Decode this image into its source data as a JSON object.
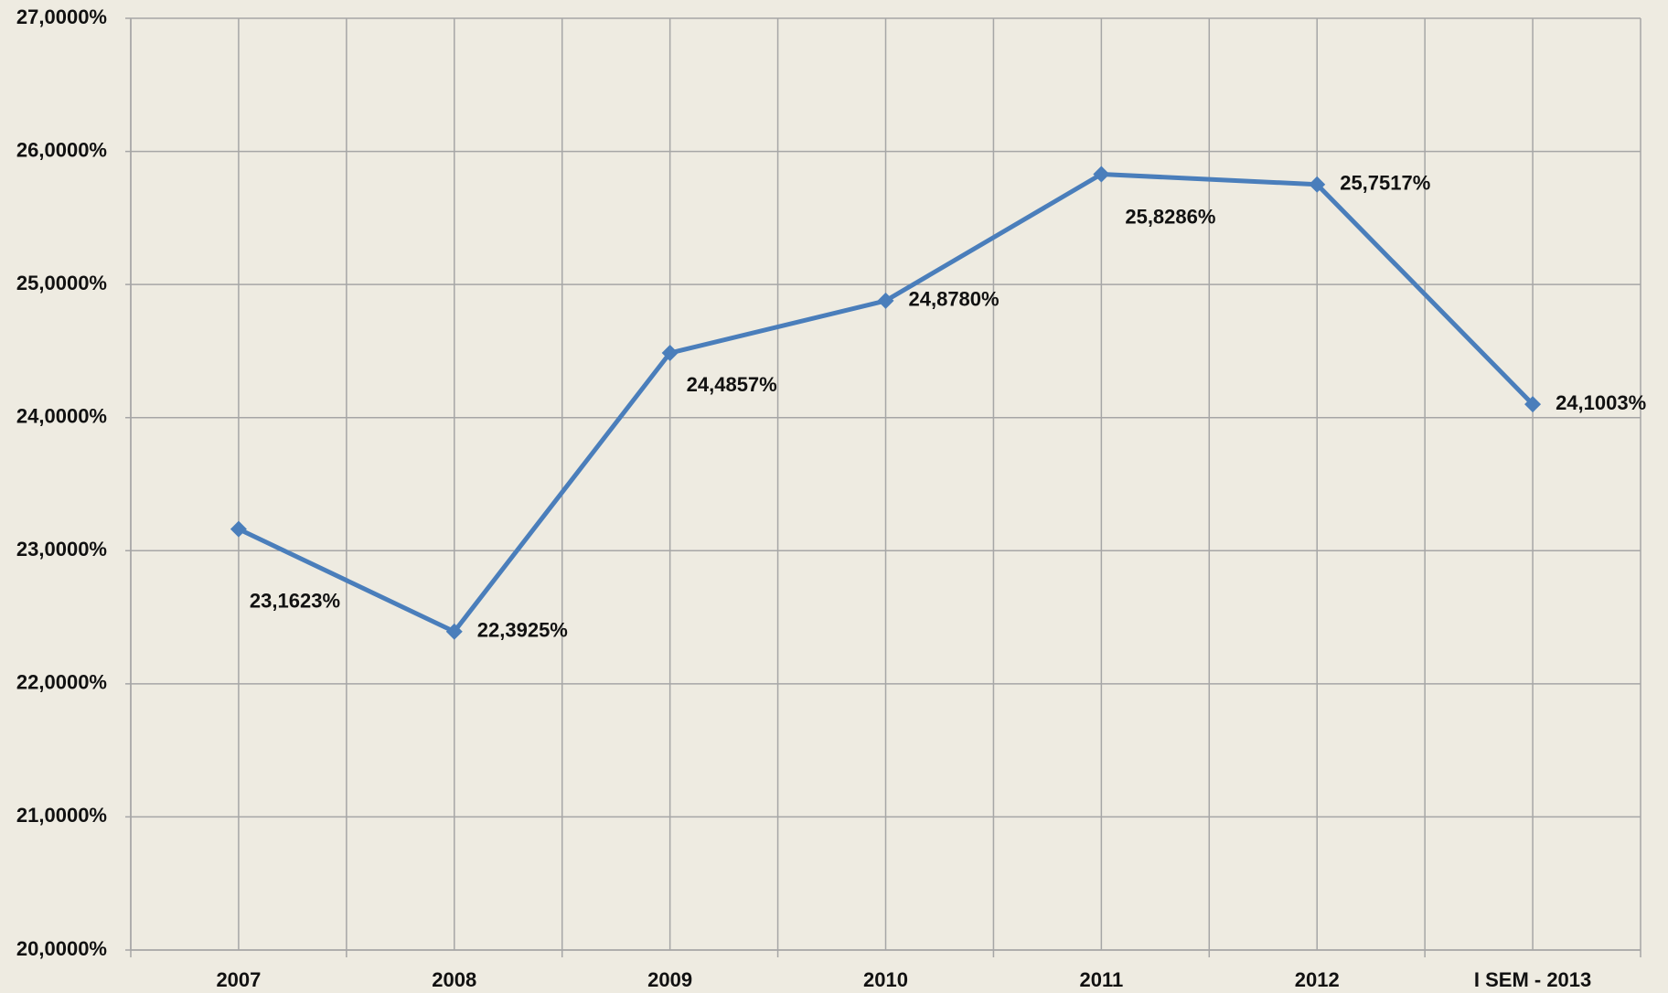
{
  "chart_data": {
    "type": "line",
    "categories": [
      "2007",
      "2008",
      "2009",
      "2010",
      "2011",
      "2012",
      "I SEM - 2013"
    ],
    "series": [
      {
        "color": "#4a7ebb",
        "values": [
          23.1623,
          22.3925,
          24.4857,
          24.878,
          25.8286,
          25.7517,
          24.1003
        ],
        "value_labels": [
          "23,1623%",
          "22,3925%",
          "24,4857%",
          "24,8780%",
          "25,8286%",
          "25,7517%",
          "24,1003%"
        ]
      }
    ],
    "ylim": [
      20,
      27
    ],
    "yticks": [
      {
        "value": 20,
        "label": "20,0000%"
      },
      {
        "value": 21,
        "label": "21,0000%"
      },
      {
        "value": 22,
        "label": "22,0000%"
      },
      {
        "value": 23,
        "label": "23,0000%"
      },
      {
        "value": 24,
        "label": "24,0000%"
      },
      {
        "value": 25,
        "label": "25,0000%"
      },
      {
        "value": 26,
        "label": "26,0000%"
      },
      {
        "value": 27,
        "label": "27,0000%"
      }
    ],
    "grid": true
  }
}
